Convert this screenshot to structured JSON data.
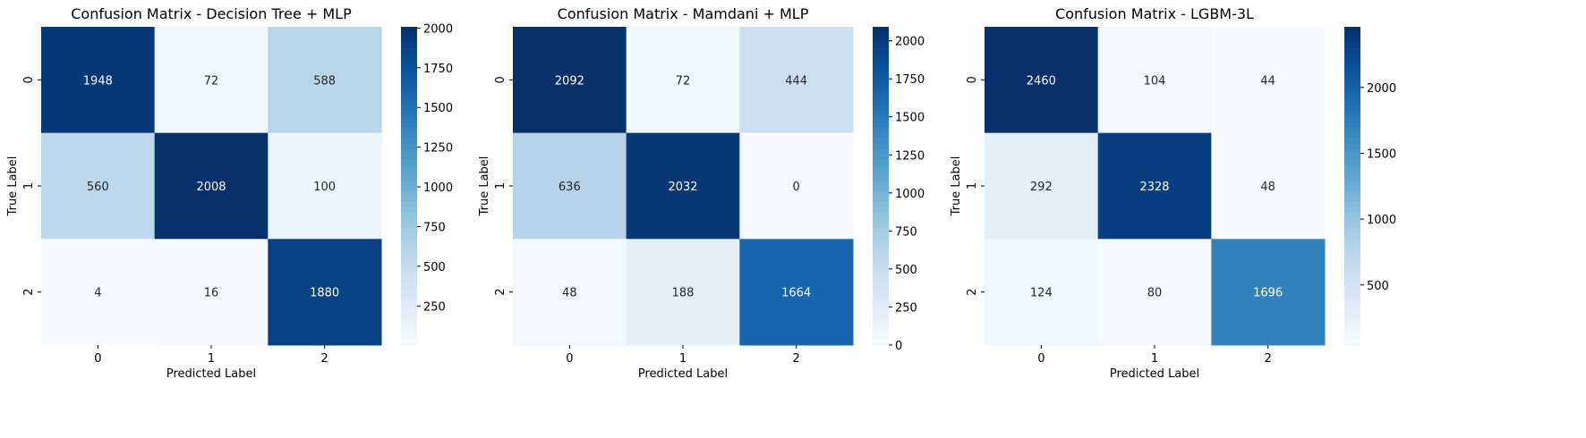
{
  "chart_data": [
    {
      "type": "heatmap",
      "title": "Confusion Matrix - Decision Tree + MLP",
      "xlabel": "Predicted Label",
      "ylabel": "True Label",
      "x_categories": [
        "0",
        "1",
        "2"
      ],
      "y_categories": [
        "0",
        "1",
        "2"
      ],
      "values": [
        [
          1948,
          72,
          588
        ],
        [
          560,
          2008,
          100
        ],
        [
          4,
          16,
          1880
        ]
      ],
      "colormap": "Blues",
      "colorbar": {
        "range": [
          4,
          2008
        ],
        "ticks": [
          250,
          500,
          750,
          1000,
          1250,
          1500,
          1750,
          2000
        ]
      }
    },
    {
      "type": "heatmap",
      "title": "Confusion Matrix - Mamdani + MLP",
      "xlabel": "Predicted Label",
      "ylabel": "True Label",
      "x_categories": [
        "0",
        "1",
        "2"
      ],
      "y_categories": [
        "0",
        "1",
        "2"
      ],
      "values": [
        [
          2092,
          72,
          444
        ],
        [
          636,
          2032,
          0
        ],
        [
          48,
          188,
          1664
        ]
      ],
      "colormap": "Blues",
      "colorbar": {
        "range": [
          0,
          2092
        ],
        "ticks": [
          0,
          250,
          500,
          750,
          1000,
          1250,
          1500,
          1750,
          2000
        ]
      }
    },
    {
      "type": "heatmap",
      "title": "Confusion Matrix - LGBM-3L",
      "xlabel": "Predicted Label",
      "ylabel": "True Label",
      "x_categories": [
        "0",
        "1",
        "2"
      ],
      "y_categories": [
        "0",
        "1",
        "2"
      ],
      "values": [
        [
          2460,
          104,
          44
        ],
        [
          292,
          2328,
          48
        ],
        [
          124,
          80,
          1696
        ]
      ],
      "colormap": "Blues",
      "colorbar": {
        "range": [
          44,
          2460
        ],
        "ticks": [
          500,
          1000,
          1500,
          2000
        ]
      }
    }
  ]
}
